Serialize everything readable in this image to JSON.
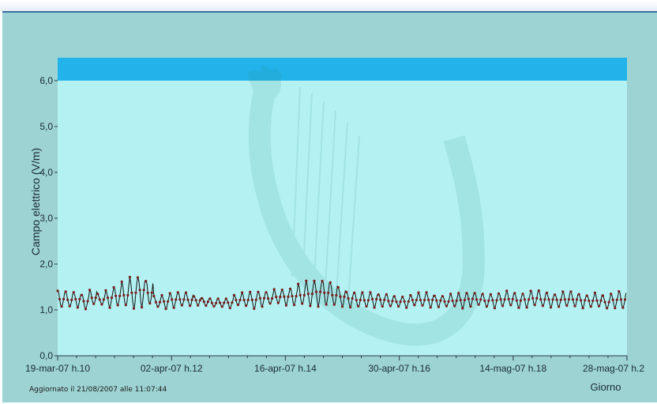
{
  "updated_text": "Aggiornato il 21/08/2007 alle 11:07:44",
  "chart_data": {
    "type": "line",
    "title": "",
    "ylabel": "Campo elettrico (V/m)",
    "xlabel": "Giorno",
    "ylim": [
      0,
      6.5
    ],
    "yticks": [
      "0,0",
      "1,0",
      "2,0",
      "3,0",
      "4,0",
      "5,0",
      "6,0"
    ],
    "ytick_values": [
      0,
      1,
      2,
      3,
      4,
      5,
      6
    ],
    "xticks": [
      "19-mar-07 h.10",
      "02-apr-07 h.12",
      "16-apr-07 h.14",
      "30-apr-07 h.16",
      "14-mag-07 h.18",
      "28-mag-07 h.2"
    ],
    "threshold": {
      "from": 6.0,
      "to": 6.5,
      "color": "#22b3ea"
    },
    "plot_background": "#b4f1f2",
    "line_color": "#111111",
    "marker_color": "#7a1e1e",
    "daily_series": {
      "x_unit": "days from 19-mar-07",
      "min": [
        1.02,
        1.04,
        1.05,
        1.0,
        1.08,
        1.1,
        1.05,
        1.06,
        1.02,
        1.0,
        1.05,
        1.07,
        1.04,
        1.02,
        1.03,
        1.05,
        1.06,
        1.1,
        1.08,
        1.05,
        1.06,
        1.04,
        1.08,
        1.05,
        1.02,
        1.06,
        1.1,
        1.12,
        1.1,
        1.08,
        1.06,
        1.05,
        1.07,
        1.05,
        1.04,
        1.06,
        1.05,
        1.03,
        1.04,
        1.05,
        1.06,
        1.04,
        1.06,
        1.05,
        1.08,
        1.05,
        1.04,
        1.06,
        1.05,
        1.05,
        1.03,
        1.06,
        1.07,
        1.05,
        1.04,
        1.06,
        1.05,
        1.03,
        1.05,
        1.06,
        1.04,
        1.05,
        1.06,
        1.04,
        1.05,
        1.04,
        1.05,
        1.03,
        1.02,
        1.04,
        1.0
      ],
      "max": [
        1.45,
        1.4,
        1.42,
        1.38,
        1.45,
        1.35,
        1.48,
        1.55,
        1.62,
        1.75,
        1.82,
        1.68,
        1.3,
        1.35,
        1.42,
        1.4,
        1.38,
        1.32,
        1.28,
        1.25,
        1.25,
        1.28,
        1.35,
        1.38,
        1.42,
        1.45,
        1.4,
        1.45,
        1.48,
        1.52,
        1.58,
        1.65,
        1.72,
        1.7,
        1.6,
        1.52,
        1.45,
        1.4,
        1.38,
        1.42,
        1.38,
        1.35,
        1.3,
        1.32,
        1.35,
        1.38,
        1.4,
        1.35,
        1.32,
        1.35,
        1.4,
        1.42,
        1.38,
        1.35,
        1.38,
        1.4,
        1.42,
        1.38,
        1.4,
        1.45,
        1.42,
        1.4,
        1.38,
        1.42,
        1.4,
        1.38,
        1.35,
        1.38,
        1.32,
        1.4,
        1.45
      ]
    }
  }
}
